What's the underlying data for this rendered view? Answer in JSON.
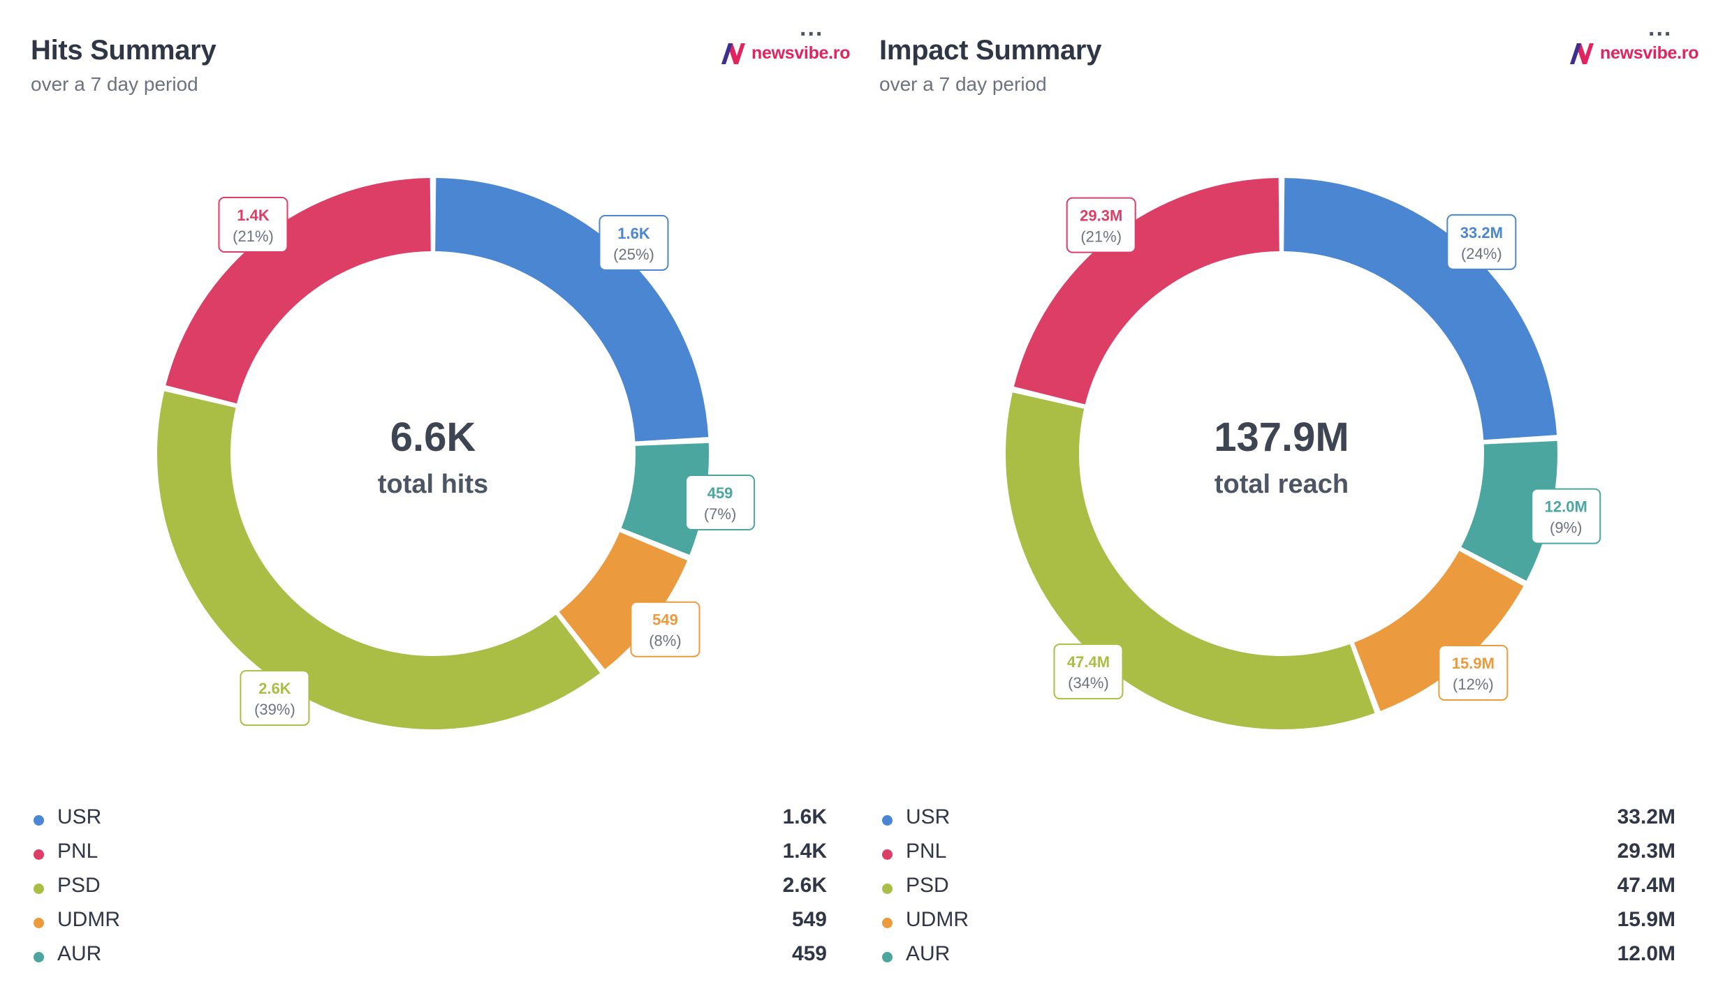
{
  "panels": [
    {
      "title": "Hits Summary",
      "subtitle": "over a 7 day period",
      "menu": "...",
      "logo": {
        "mark": "N",
        "text": "newsvibe.ro"
      },
      "center": {
        "value": "6.6K",
        "label": "total hits"
      }
    },
    {
      "title": "Impact Summary",
      "subtitle": "over a 7 day period",
      "menu": "...",
      "logo": {
        "mark": "N",
        "text": "newsvibe.ro"
      },
      "center": {
        "value": "137.9M",
        "label": "total reach"
      }
    }
  ],
  "colors": {
    "USR": "#4a86d1",
    "PNL": "#dc3e66",
    "PSD": "#aabe46",
    "UDMR": "#eb9b3e",
    "AUR": "#4aa69f"
  },
  "chart_data": [
    {
      "type": "pie",
      "variant": "donut",
      "title": "Hits Summary",
      "subtitle": "over a 7 day period",
      "total_label": "6.6K",
      "total_caption": "total hits",
      "categories": [
        "USR",
        "AUR",
        "UDMR",
        "PSD",
        "PNL"
      ],
      "values": [
        1600,
        459,
        549,
        2600,
        1400
      ],
      "value_labels": [
        "1.6K",
        "459",
        "549",
        "2.6K",
        "1.4K"
      ],
      "percent_labels": [
        "(25%)",
        "(7%)",
        "(8%)",
        "(39%)",
        "(21%)"
      ],
      "legend": [
        {
          "name": "USR",
          "value": "1.6K"
        },
        {
          "name": "PNL",
          "value": "1.4K"
        },
        {
          "name": "PSD",
          "value": "2.6K"
        },
        {
          "name": "UDMR",
          "value": "549"
        },
        {
          "name": "AUR",
          "value": "459"
        }
      ]
    },
    {
      "type": "pie",
      "variant": "donut",
      "title": "Impact Summary",
      "subtitle": "over a 7 day period",
      "total_label": "137.9M",
      "total_caption": "total reach",
      "categories": [
        "USR",
        "AUR",
        "UDMR",
        "PSD",
        "PNL"
      ],
      "values": [
        33.2,
        12.0,
        15.9,
        47.4,
        29.3
      ],
      "value_labels": [
        "33.2M",
        "12.0M",
        "15.9M",
        "47.4M",
        "29.3M"
      ],
      "percent_labels": [
        "(24%)",
        "(9%)",
        "(12%)",
        "(34%)",
        "(21%)"
      ],
      "legend": [
        {
          "name": "USR",
          "value": "33.2M"
        },
        {
          "name": "PNL",
          "value": "29.3M"
        },
        {
          "name": "PSD",
          "value": "47.4M"
        },
        {
          "name": "UDMR",
          "value": "15.9M"
        },
        {
          "name": "AUR",
          "value": "12.0M"
        }
      ]
    }
  ]
}
